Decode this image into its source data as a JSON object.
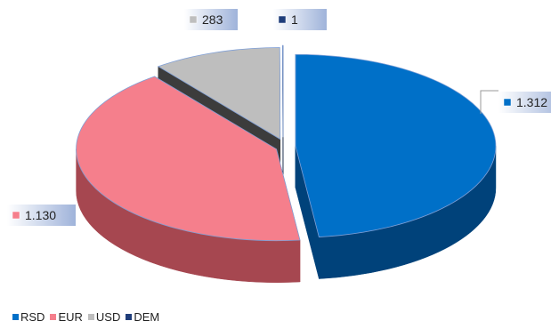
{
  "chart_data": {
    "type": "pie",
    "title": "",
    "series": [
      {
        "name": "RSD",
        "value": 1312,
        "label": "1.312",
        "color": "#0070C8",
        "dark": "#00427A"
      },
      {
        "name": "EUR",
        "value": 1130,
        "label": "1.130",
        "color": "#F57F8C",
        "dark": "#A64750"
      },
      {
        "name": "USD",
        "value": 283,
        "label": "283",
        "color": "#BEBEBE",
        "dark": "#3C3C3C"
      },
      {
        "name": "DEM",
        "value": 1,
        "label": "1",
        "color": "#1F3D7A",
        "dark": "#0F2244"
      }
    ],
    "legend_position": "bottom-left",
    "style": "3d-exploded"
  }
}
